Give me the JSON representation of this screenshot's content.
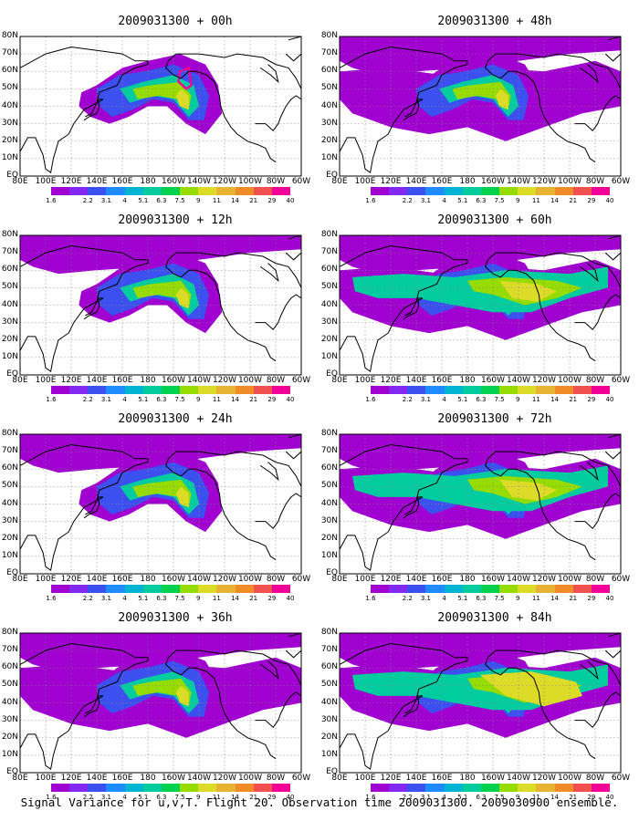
{
  "panels": [
    {
      "title": "2009031300 + 00h",
      "level": 0
    },
    {
      "title": "2009031300 + 12h",
      "level": 1
    },
    {
      "title": "2009031300 + 24h",
      "level": 2
    },
    {
      "title": "2009031300 + 36h",
      "level": 3
    },
    {
      "title": "2009031300 + 48h",
      "level": 3
    },
    {
      "title": "2009031300 + 60h",
      "level": 4
    },
    {
      "title": "2009031300 + 72h",
      "level": 5
    },
    {
      "title": "2009031300 + 84h",
      "level": 6
    }
  ],
  "lat_labels": [
    "80N",
    "70N",
    "60N",
    "50N",
    "40N",
    "30N",
    "20N",
    "10N",
    "EQ"
  ],
  "lon_labels": [
    "80E",
    "100E",
    "120E",
    "140E",
    "160E",
    "180",
    "160W",
    "140W",
    "120W",
    "100W",
    "80W",
    "60W"
  ],
  "colorbar": {
    "labels": [
      "1.6",
      "2.2",
      "3.1",
      "4",
      "5.1",
      "6.3",
      "7.5",
      "9",
      "11",
      "14",
      "21",
      "29",
      "40"
    ],
    "colors": [
      "#a000d0",
      "#8228f0",
      "#3c50f0",
      "#1e8cff",
      "#00b4d2",
      "#00cca0",
      "#00d250",
      "#96dc00",
      "#dcdc28",
      "#e6b432",
      "#f08c28",
      "#f05050",
      "#f00096"
    ]
  },
  "caption": "Signal Variance for u,v,T. Flight 20. Observation time 2009031300. 2009030900 ensemble."
}
